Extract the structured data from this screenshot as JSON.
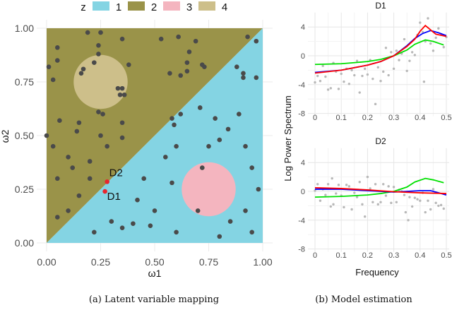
{
  "chart_data": [
    {
      "type": "scatter",
      "caption": "(a)  Latent variable mapping",
      "xlabel": "ω1",
      "ylabel": "ω2",
      "xlim": [
        0,
        1
      ],
      "ylim": [
        0,
        1
      ],
      "xticks": [
        "0.00",
        "0.25",
        "0.50",
        "0.75",
        "1.00"
      ],
      "yticks": [
        "0.00",
        "0.25",
        "0.50",
        "0.75",
        "1.00"
      ],
      "grid": true,
      "legend": {
        "title": "z",
        "placement": "top",
        "entries": [
          {
            "label": "1",
            "color": "#84d4e3"
          },
          {
            "label": "2",
            "color": "#9a9349"
          },
          {
            "label": "3",
            "color": "#f4b5bf"
          },
          {
            "label": "4",
            "color": "#cdbf8a"
          }
        ]
      },
      "regions": [
        {
          "z": "2",
          "shape": "triangle above diagonal ω2>ω1"
        },
        {
          "z": "1",
          "shape": "triangle below diagonal ω2<ω1"
        },
        {
          "z": "4",
          "shape": "circle",
          "center": [
            0.25,
            0.75
          ],
          "radius": 0.125
        },
        {
          "z": "3",
          "shape": "circle",
          "center": [
            0.75,
            0.25
          ],
          "radius": 0.125
        }
      ],
      "point_color": "#4a4a4a",
      "points": [
        [
          0.19,
          0.98
        ],
        [
          0.25,
          0.98
        ],
        [
          0.35,
          0.95
        ],
        [
          0.53,
          0.95
        ],
        [
          0.61,
          0.96
        ],
        [
          0.69,
          0.94
        ],
        [
          0.66,
          0.89
        ],
        [
          0.05,
          0.91
        ],
        [
          0.05,
          0.85
        ],
        [
          0.24,
          0.92
        ],
        [
          0.24,
          0.88
        ],
        [
          0.22,
          0.84
        ],
        [
          0.17,
          0.81
        ],
        [
          0.16,
          0.79
        ],
        [
          0.01,
          0.82
        ],
        [
          0.03,
          0.76
        ],
        [
          0.38,
          0.83
        ],
        [
          0.57,
          0.79
        ],
        [
          0.62,
          0.78
        ],
        [
          0.65,
          0.8
        ],
        [
          0.65,
          0.84
        ],
        [
          0.72,
          0.83
        ],
        [
          0.73,
          0.82
        ],
        [
          0.33,
          0.72
        ],
        [
          0.35,
          0.72
        ],
        [
          0.34,
          0.69
        ],
        [
          0.36,
          0.69
        ],
        [
          0.24,
          0.61
        ],
        [
          0.26,
          0.6
        ],
        [
          0.06,
          0.57
        ],
        [
          0.15,
          0.56
        ],
        [
          0.14,
          0.52
        ],
        [
          0.25,
          0.5
        ],
        [
          0.35,
          0.56
        ],
        [
          0.35,
          0.49
        ],
        [
          0.0,
          0.5
        ],
        [
          0.1,
          0.4
        ],
        [
          0.2,
          0.38
        ],
        [
          0.05,
          0.3
        ],
        [
          0.12,
          0.35
        ],
        [
          0.15,
          0.22
        ],
        [
          0.1,
          0.15
        ],
        [
          0.05,
          0.12
        ],
        [
          0.2,
          0.3
        ],
        [
          0.03,
          0.45
        ],
        [
          0.28,
          0.45
        ],
        [
          0.88,
          0.82
        ],
        [
          0.91,
          0.79
        ],
        [
          0.91,
          0.77
        ],
        [
          0.97,
          0.77
        ],
        [
          0.93,
          0.96
        ],
        [
          0.97,
          0.94
        ],
        [
          0.89,
          0.6
        ],
        [
          0.71,
          0.63
        ],
        [
          0.62,
          0.6
        ],
        [
          0.58,
          0.58
        ],
        [
          0.59,
          0.55
        ],
        [
          0.78,
          0.58
        ],
        [
          0.84,
          0.53
        ],
        [
          0.8,
          0.48
        ],
        [
          0.75,
          0.45
        ],
        [
          0.92,
          0.45
        ],
        [
          0.6,
          0.45
        ],
        [
          0.55,
          0.4
        ],
        [
          0.45,
          0.3
        ],
        [
          0.58,
          0.28
        ],
        [
          0.95,
          0.35
        ],
        [
          0.98,
          0.25
        ],
        [
          0.92,
          0.15
        ],
        [
          0.85,
          0.1
        ],
        [
          0.7,
          0.15
        ],
        [
          0.48,
          0.08
        ],
        [
          0.35,
          0.07
        ],
        [
          0.22,
          0.05
        ],
        [
          0.3,
          0.1
        ],
        [
          0.6,
          0.05
        ],
        [
          0.8,
          0.03
        ],
        [
          0.95,
          0.05
        ],
        [
          0.42,
          0.2
        ],
        [
          0.5,
          0.15
        ],
        [
          0.72,
          0.35
        ],
        [
          0.4,
          0.09
        ]
      ],
      "highlighted": [
        {
          "label": "D2",
          "point": [
            0.28,
            0.285
          ],
          "color": "#e8262e"
        },
        {
          "label": "D1",
          "point": [
            0.27,
            0.24
          ],
          "color": "#e8262e"
        }
      ]
    },
    {
      "type": "line",
      "caption": "(b)  Model estimation",
      "xlabel": "Frequency",
      "ylabel": "Log Power Spectrum",
      "xlim": [
        0,
        0.5
      ],
      "ylim": [
        -8,
        6
      ],
      "xticks": [
        "0",
        "0.1",
        "0.2",
        "0.3",
        "0.4",
        "0.5"
      ],
      "yticks": [
        "-8",
        "-4",
        "0",
        "4"
      ],
      "grid": true,
      "panels": [
        {
          "title": "D1",
          "series": [
            {
              "color": "#00e000",
              "x": [
                0,
                0.1,
                0.2,
                0.25,
                0.3,
                0.35,
                0.38,
                0.42,
                0.45,
                0.49
              ],
              "y": [
                -1.2,
                -1.1,
                -0.8,
                -0.5,
                0,
                0.8,
                1.6,
                2.2,
                2.0,
                1.5
              ]
            },
            {
              "color": "#0000ff",
              "x": [
                0,
                0.1,
                0.2,
                0.25,
                0.3,
                0.35,
                0.38,
                0.41,
                0.44,
                0.47,
                0.5
              ],
              "y": [
                -2.3,
                -2.0,
                -1.3,
                -0.8,
                0,
                1.4,
                2.4,
                3.1,
                3.5,
                3.2,
                2.8
              ]
            },
            {
              "color": "#ff0000",
              "x": [
                0,
                0.1,
                0.2,
                0.25,
                0.3,
                0.35,
                0.38,
                0.4,
                0.42,
                0.44,
                0.46,
                0.5
              ],
              "y": [
                -2.4,
                -2.0,
                -1.3,
                -0.8,
                0,
                1.3,
                2.3,
                3.4,
                4.2,
                3.6,
                3.0,
                2.7
              ]
            }
          ],
          "scatter": [
            [
              0,
              -3.7
            ],
            [
              0.01,
              -2.8
            ],
            [
              0.02,
              -3.5
            ],
            [
              0.03,
              -1.4
            ],
            [
              0.04,
              -2.9
            ],
            [
              0.05,
              -4.7
            ],
            [
              0.06,
              -4.5
            ],
            [
              0.07,
              -1.0
            ],
            [
              0.08,
              -2.2
            ],
            [
              0.09,
              -4.6
            ],
            [
              0.1,
              -2.5
            ],
            [
              0.11,
              -3.6
            ],
            [
              0.12,
              -1.8
            ],
            [
              0.13,
              -3.9
            ],
            [
              0.14,
              -2.0
            ],
            [
              0.15,
              -2.7
            ],
            [
              0.16,
              -0.7
            ],
            [
              0.17,
              -5.1
            ],
            [
              0.18,
              -2.8
            ],
            [
              0.19,
              -1.8
            ],
            [
              0.2,
              -2.6
            ],
            [
              0.21,
              -0.6
            ],
            [
              0.22,
              -3.2
            ],
            [
              0.23,
              -6.7
            ],
            [
              0.24,
              -1.6
            ],
            [
              0.25,
              -3.5
            ],
            [
              0.26,
              -2.2
            ],
            [
              0.27,
              1.1
            ],
            [
              0.28,
              -2.7
            ],
            [
              0.29,
              0.5
            ],
            [
              0.3,
              -1.8
            ],
            [
              0.31,
              0.7
            ],
            [
              0.32,
              -0.6
            ],
            [
              0.33,
              0.3
            ],
            [
              0.34,
              2.3
            ],
            [
              0.35,
              -2.1
            ],
            [
              0.36,
              -0.7
            ],
            [
              0.37,
              0.5
            ],
            [
              0.38,
              0.1
            ],
            [
              0.39,
              2.9
            ],
            [
              0.4,
              4.6
            ],
            [
              0.41,
              3.3
            ],
            [
              0.415,
              -3.6
            ],
            [
              0.42,
              2.0
            ],
            [
              0.43,
              5.2
            ],
            [
              0.44,
              1.7
            ],
            [
              0.45,
              0.7
            ],
            [
              0.46,
              2.5
            ],
            [
              0.47,
              3.8
            ],
            [
              0.48,
              3.0
            ],
            [
              0.49,
              1.2
            ],
            [
              0.5,
              2.6
            ]
          ]
        },
        {
          "title": "D2",
          "series": [
            {
              "color": "#00e000",
              "x": [
                0,
                0.1,
                0.2,
                0.25,
                0.3,
                0.35,
                0.38,
                0.42,
                0.45,
                0.49
              ],
              "y": [
                -0.8,
                -0.7,
                -0.5,
                -0.3,
                0,
                0.6,
                1.3,
                1.8,
                1.6,
                1.2
              ]
            },
            {
              "color": "#0000ff",
              "x": [
                0,
                0.1,
                0.2,
                0.3,
                0.35,
                0.4,
                0.44,
                0.47,
                0.5
              ],
              "y": [
                0.3,
                0.3,
                0.1,
                -0.1,
                0.0,
                0.1,
                0.1,
                -0.2,
                -0.5
              ]
            },
            {
              "color": "#ff0000",
              "x": [
                0,
                0.1,
                0.2,
                0.3,
                0.4,
                0.5
              ],
              "y": [
                0.5,
                0.4,
                0.2,
                -0.05,
                -0.2,
                -0.3
              ]
            }
          ],
          "scatter": [
            [
              0,
              0.1
            ],
            [
              0.01,
              1.0
            ],
            [
              0.02,
              -1.3
            ],
            [
              0.03,
              0.3
            ],
            [
              0.04,
              -0.5
            ],
            [
              0.05,
              1.0
            ],
            [
              0.06,
              -2.1
            ],
            [
              0.065,
              1.8
            ],
            [
              0.07,
              -1.8
            ],
            [
              0.08,
              -0.3
            ],
            [
              0.09,
              0.9
            ],
            [
              0.1,
              -0.6
            ],
            [
              0.11,
              -2.2
            ],
            [
              0.12,
              0.9
            ],
            [
              0.13,
              0.7
            ],
            [
              0.14,
              -2.5
            ],
            [
              0.15,
              -0.2
            ],
            [
              0.16,
              -0.8
            ],
            [
              0.17,
              1.3
            ],
            [
              0.18,
              -1.8
            ],
            [
              0.19,
              -3.5
            ],
            [
              0.2,
              2.0
            ],
            [
              0.21,
              0.4
            ],
            [
              0.22,
              -1.5
            ],
            [
              0.23,
              1.0
            ],
            [
              0.24,
              -1.8
            ],
            [
              0.25,
              -1.5
            ],
            [
              0.26,
              1.0
            ],
            [
              0.27,
              -0.6
            ],
            [
              0.28,
              0.7
            ],
            [
              0.29,
              -1.6
            ],
            [
              0.3,
              0.6
            ],
            [
              0.31,
              -1.5
            ],
            [
              0.32,
              0.2
            ],
            [
              0.33,
              0.0
            ],
            [
              0.34,
              -0.5
            ],
            [
              0.345,
              -2.9
            ],
            [
              0.355,
              -4.0
            ],
            [
              0.36,
              -0.8
            ],
            [
              0.37,
              -2.1
            ],
            [
              0.38,
              -0.9
            ],
            [
              0.39,
              -1.1
            ],
            [
              0.4,
              -1.3
            ],
            [
              0.41,
              -0.2
            ],
            [
              0.42,
              -2.9
            ],
            [
              0.43,
              -1.3
            ],
            [
              0.44,
              -2.5
            ],
            [
              0.45,
              0.3
            ],
            [
              0.46,
              -1.6
            ],
            [
              0.47,
              -2.0
            ],
            [
              0.48,
              -1.9
            ],
            [
              0.49,
              -2.4
            ]
          ]
        }
      ]
    }
  ]
}
